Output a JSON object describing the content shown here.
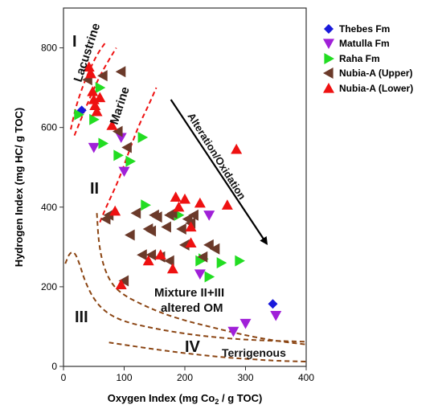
{
  "chart_data": {
    "type": "scatter",
    "xlabel_parts": [
      "Oxygen Index (mg Co",
      "2",
      " / g TOC)"
    ],
    "ylabel": "Hydrogen Index (mg HC/ g TOC)",
    "xlim": [
      0,
      400
    ],
    "ylim": [
      0,
      900
    ],
    "xticks": [
      0,
      100,
      200,
      300,
      400
    ],
    "yticks": [
      0,
      200,
      400,
      600,
      800
    ],
    "grid": false,
    "legend_position": "top-right",
    "annotations": {
      "zone_I": "I",
      "zone_II": "II",
      "zone_III": "III",
      "zone_IV": "IV",
      "lacustrine": "Lacustrine",
      "marine": "Marine",
      "alteration": "Alteration/Oxidation",
      "mixture_line1": "Mixture II+III",
      "mixture_line2": "altered OM",
      "terrigenous": "Terrigenous"
    },
    "series": [
      {
        "name": "Thebes Fm",
        "marker": "diamond",
        "color": "#1a1adb",
        "points": [
          [
            30,
            643
          ],
          [
            345,
            157
          ]
        ]
      },
      {
        "name": "Matulla Fm",
        "marker": "triangle-down",
        "color": "#a020d8",
        "points": [
          [
            50,
            550
          ],
          [
            95,
            575
          ],
          [
            100,
            490
          ],
          [
            240,
            380
          ],
          [
            225,
            232
          ],
          [
            280,
            88
          ],
          [
            300,
            108
          ],
          [
            350,
            128
          ]
        ]
      },
      {
        "name": "Raha Fm",
        "marker": "triangle-right",
        "color": "#22dd22",
        "points": [
          [
            25,
            632
          ],
          [
            50,
            620
          ],
          [
            60,
            700
          ],
          [
            65,
            560
          ],
          [
            90,
            530
          ],
          [
            110,
            515
          ],
          [
            130,
            575
          ],
          [
            135,
            405
          ],
          [
            190,
            380
          ],
          [
            225,
            265
          ],
          [
            230,
            270
          ],
          [
            240,
            225
          ],
          [
            260,
            260
          ],
          [
            290,
            265
          ]
        ]
      },
      {
        "name": "Nubia-A (Upper)",
        "marker": "triangle-left",
        "color": "#6b3a2a",
        "points": [
          [
            40,
            720
          ],
          [
            65,
            730
          ],
          [
            95,
            740
          ],
          [
            90,
            590
          ],
          [
            105,
            550
          ],
          [
            70,
            370
          ],
          [
            75,
            380
          ],
          [
            110,
            330
          ],
          [
            120,
            385
          ],
          [
            140,
            345
          ],
          [
            145,
            340
          ],
          [
            150,
            380
          ],
          [
            155,
            375
          ],
          [
            170,
            350
          ],
          [
            175,
            380
          ],
          [
            180,
            385
          ],
          [
            130,
            280
          ],
          [
            145,
            280
          ],
          [
            160,
            275
          ],
          [
            175,
            265
          ],
          [
            195,
            345
          ],
          [
            205,
            370
          ],
          [
            210,
            360
          ],
          [
            215,
            380
          ],
          [
            200,
            305
          ],
          [
            240,
            305
          ],
          [
            250,
            295
          ],
          [
            230,
            275
          ],
          [
            100,
            215
          ]
        ]
      },
      {
        "name": "Nubia-A (Lower)",
        "marker": "triangle-up",
        "color": "#ee1111",
        "points": [
          [
            42,
            752
          ],
          [
            45,
            735
          ],
          [
            48,
            690
          ],
          [
            50,
            670
          ],
          [
            52,
            655
          ],
          [
            55,
            640
          ],
          [
            60,
            675
          ],
          [
            80,
            605
          ],
          [
            85,
            390
          ],
          [
            95,
            205
          ],
          [
            140,
            265
          ],
          [
            160,
            280
          ],
          [
            180,
            245
          ],
          [
            185,
            425
          ],
          [
            190,
            400
          ],
          [
            200,
            420
          ],
          [
            210,
            310
          ],
          [
            210,
            350
          ],
          [
            225,
            410
          ],
          [
            270,
            405
          ],
          [
            285,
            545
          ]
        ]
      }
    ],
    "boundaries": [
      {
        "id": "lacustrine-top",
        "color": "#ee1111",
        "points": [
          [
            12,
            595
          ],
          [
            20,
            650
          ],
          [
            32,
            705
          ],
          [
            46,
            755
          ],
          [
            58,
            790
          ],
          [
            70,
            815
          ]
        ]
      },
      {
        "id": "lacustrine-bottom",
        "color": "#ee1111",
        "points": [
          [
            18,
            580
          ],
          [
            30,
            625
          ],
          [
            45,
            680
          ],
          [
            60,
            730
          ],
          [
            75,
            770
          ],
          [
            87,
            800
          ]
        ]
      },
      {
        "id": "marine",
        "color": "#ee1111",
        "points": [
          [
            60,
            362
          ],
          [
            68,
            392
          ],
          [
            78,
            425
          ],
          [
            92,
            472
          ],
          [
            108,
            540
          ],
          [
            124,
            605
          ],
          [
            140,
            655
          ],
          [
            153,
            700
          ]
        ]
      },
      {
        "id": "type-III-boundary",
        "color": "#8b4513",
        "points": [
          [
            3,
            258
          ],
          [
            10,
            285
          ],
          [
            18,
            288
          ],
          [
            26,
            260
          ],
          [
            35,
            215
          ],
          [
            50,
            168
          ],
          [
            70,
            135
          ],
          [
            100,
            112
          ],
          [
            150,
            95
          ],
          [
            200,
            82
          ],
          [
            250,
            73
          ],
          [
            300,
            67
          ],
          [
            350,
            64
          ],
          [
            400,
            62
          ]
        ]
      },
      {
        "id": "mixture-boundary",
        "color": "#8b4513",
        "points": [
          [
            55,
            385
          ],
          [
            58,
            310
          ],
          [
            66,
            250
          ],
          [
            80,
            205
          ],
          [
            100,
            178
          ],
          [
            130,
            155
          ],
          [
            160,
            135
          ],
          [
            200,
            115
          ],
          [
            240,
            100
          ],
          [
            280,
            85
          ],
          [
            320,
            72
          ],
          [
            360,
            62
          ],
          [
            400,
            55
          ]
        ]
      },
      {
        "id": "type-IV-boundary",
        "color": "#8b4513",
        "points": [
          [
            75,
            60
          ],
          [
            110,
            52
          ],
          [
            150,
            43
          ],
          [
            190,
            35
          ],
          [
            230,
            28
          ],
          [
            270,
            22
          ],
          [
            310,
            18
          ],
          [
            350,
            14
          ],
          [
            400,
            12
          ]
        ]
      }
    ],
    "arrow": {
      "from": [
        177,
        670
      ],
      "to": [
        335,
        308
      ]
    }
  }
}
